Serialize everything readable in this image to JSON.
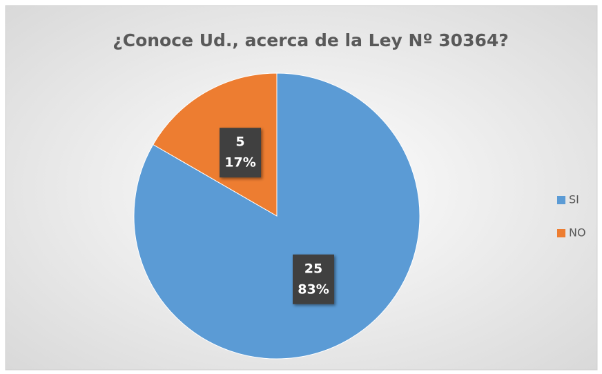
{
  "chart_data": {
    "type": "pie",
    "title": "¿Conoce Ud., acerca de la Ley Nº 30364?",
    "categories": [
      "SI",
      "NO"
    ],
    "values": [
      25,
      5
    ],
    "percents": [
      83,
      17
    ],
    "percent_labels": [
      "83%",
      "17%"
    ],
    "colors": [
      "#5b9bd5",
      "#ed7d31"
    ],
    "legend": "right"
  }
}
